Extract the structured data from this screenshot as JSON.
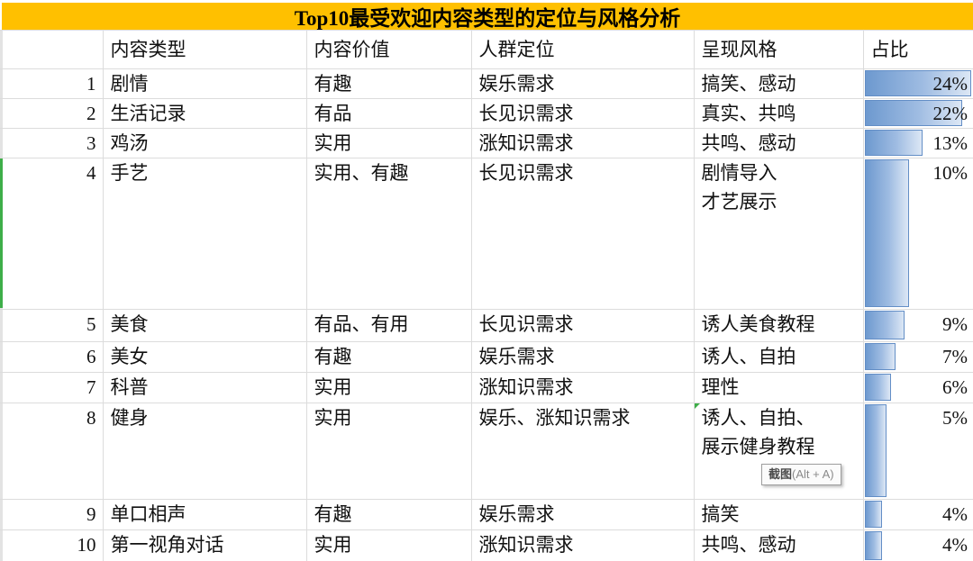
{
  "title": "Top10最受欢迎内容类型的定位与风格分析",
  "columns": {
    "type": "内容类型",
    "value": "内容价值",
    "audience": "人群定位",
    "style": "呈现风格",
    "pct": "占比"
  },
  "rows": [
    {
      "num": "1",
      "type": "剧情",
      "value": "有趣",
      "audience": "娱乐需求",
      "style": "搞笑、感动",
      "pct": "24%",
      "pct_value": 24
    },
    {
      "num": "2",
      "type": "生活记录",
      "value": "有品",
      "audience": "长见识需求",
      "style": "真实、共鸣",
      "pct": "22%",
      "pct_value": 22
    },
    {
      "num": "3",
      "type": "鸡汤",
      "value": "实用",
      "audience": "涨知识需求",
      "style": "共鸣、感动",
      "pct": "13%",
      "pct_value": 13
    },
    {
      "num": "4",
      "type": "手艺",
      "value": "实用、有趣",
      "audience": "长见识需求",
      "style": "剧情导入",
      "style2": "才艺展示",
      "pct": "10%",
      "pct_value": 10
    },
    {
      "num": "5",
      "type": "美食",
      "value": "有品、有用",
      "audience": "长见识需求",
      "style": "诱人美食教程",
      "pct": "9%",
      "pct_value": 9
    },
    {
      "num": "6",
      "type": "美女",
      "value": "有趣",
      "audience": "娱乐需求",
      "style": "诱人、自拍",
      "pct": "7%",
      "pct_value": 7
    },
    {
      "num": "7",
      "type": "科普",
      "value": "实用",
      "audience": "涨知识需求",
      "style": "理性",
      "pct": "6%",
      "pct_value": 6
    },
    {
      "num": "8",
      "type": "健身",
      "value": "实用",
      "audience": "娱乐、涨知识需求",
      "style": "诱人、自拍、",
      "style2": "展示健身教程",
      "pct": "5%",
      "pct_value": 5
    },
    {
      "num": "9",
      "type": "单口相声",
      "value": "有趣",
      "audience": "娱乐需求",
      "style": "搞笑",
      "pct": "4%",
      "pct_value": 4
    },
    {
      "num": "10",
      "type": "第一视角对话",
      "value": "实用",
      "audience": "涨知识需求",
      "style": "共鸣、感动",
      "pct": "4%",
      "pct_value": 4
    }
  ],
  "bars": {
    "max_value": 24,
    "fill_start": "#6D99CF",
    "fill_end": "#DCE7F5",
    "border": "#638EC6"
  },
  "tooltip": {
    "label": "截图",
    "shortcut": "(Alt + A)"
  },
  "colors": {
    "title_bg": "#FFC000",
    "grid": "#DCDCDC",
    "selection_green": "#3EAE49"
  },
  "chart_data": {
    "type": "bar",
    "categories": [
      "剧情",
      "生活记录",
      "鸡汤",
      "手艺",
      "美食",
      "美女",
      "科普",
      "健身",
      "单口相声",
      "第一视角对话"
    ],
    "values": [
      24,
      22,
      13,
      10,
      9,
      7,
      6,
      5,
      4,
      4
    ],
    "title": "Top10最受欢迎内容类型的定位与风格分析",
    "xlabel": "内容类型",
    "ylabel": "占比",
    "ylim": [
      0,
      24
    ]
  }
}
